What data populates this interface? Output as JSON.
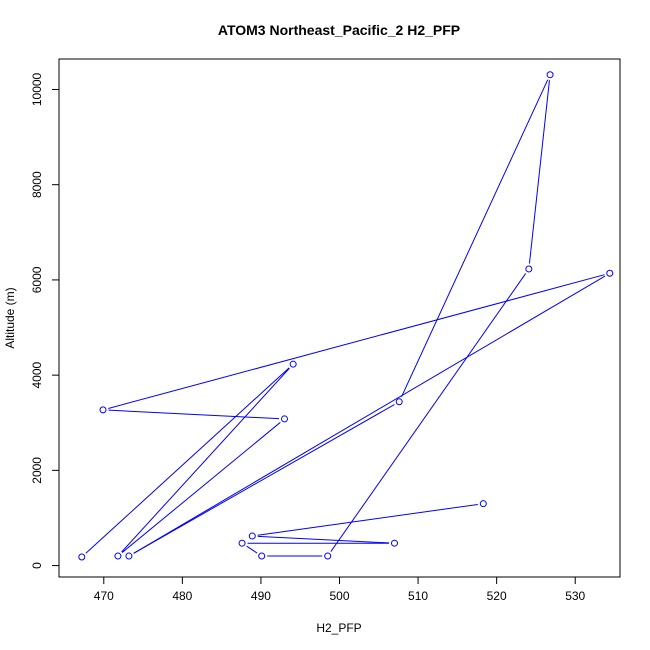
{
  "chart_data": {
    "type": "line",
    "title": "ATOM3 Northeast_Pacific_2 H2_PFP",
    "xlabel": "H2_PFP",
    "ylabel": "Altitude (m)",
    "xlim": [
      464.3,
      535.7
    ],
    "ylim": [
      -240,
      10640
    ],
    "xticks": [
      470,
      480,
      490,
      500,
      510,
      520,
      530
    ],
    "yticks": [
      0,
      2000,
      4000,
      6000,
      8000,
      10000
    ],
    "grid": false,
    "series": [
      {
        "color": "#0000ff",
        "marker": "open-circle",
        "x": [
          518.3,
          488.9,
          507.0,
          487.6,
          490.1,
          498.5,
          524.1,
          526.8,
          507.6,
          473.2,
          534.4,
          469.9,
          493.0,
          471.8,
          494.1,
          467.2
        ],
        "y": [
          1300,
          620,
          470,
          470,
          200,
          200,
          6230,
          10310,
          3440,
          200,
          6140,
          3270,
          3080,
          200,
          4230,
          180
        ]
      }
    ]
  }
}
